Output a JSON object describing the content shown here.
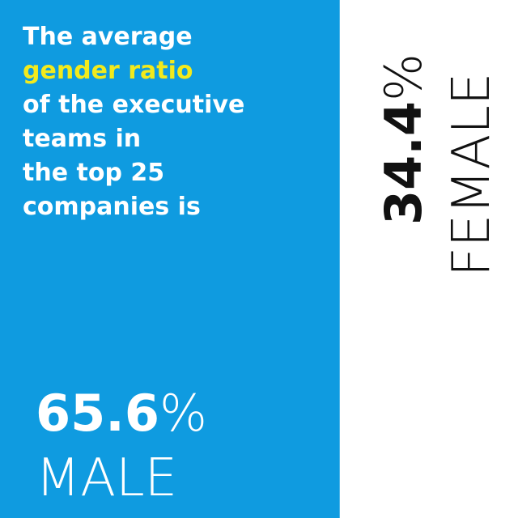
{
  "chart_data": {
    "type": "split",
    "title": [
      {
        "text": "The average",
        "color": "#ffffff"
      },
      {
        "text": "gender ratio",
        "color": "#f2ea1c"
      },
      {
        "text": "of the executive",
        "color": "#ffffff"
      },
      {
        "text": "teams in",
        "color": "#ffffff"
      },
      {
        "text": "the top 25",
        "color": "#ffffff"
      },
      {
        "text": "companies is",
        "color": "#ffffff"
      }
    ],
    "xlim": [
      0,
      100
    ],
    "series": [
      {
        "name": "MALE",
        "color": "#0f9be0",
        "text_color": "#ffffff",
        "values": [
          65.6
        ],
        "value_labels": [
          "65.6%"
        ]
      },
      {
        "name": "FEMALE",
        "color": "#ffffff",
        "text_color": "#111111",
        "values": [
          34.4
        ],
        "value_labels": [
          "34.4%"
        ]
      }
    ]
  }
}
